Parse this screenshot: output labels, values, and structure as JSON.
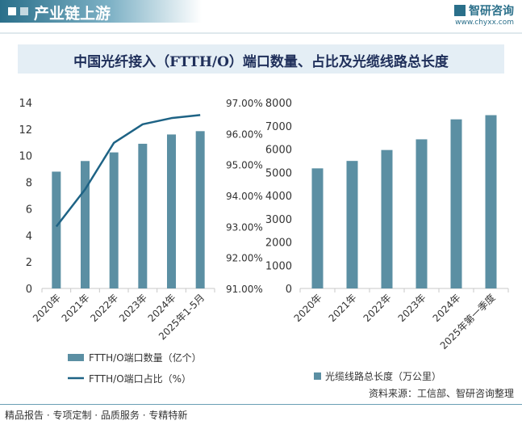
{
  "header": {
    "title": "产业链上游"
  },
  "brand": {
    "name": "智研咨询",
    "url": "www.chyxx.com"
  },
  "title": "中国光纤接入（FTTH/O）端口数量、占比及光缆线路总长度",
  "colors": {
    "bar": "#5b8fa3",
    "line": "#1e6385",
    "title_box": "#e4eef5"
  },
  "chart_data": [
    {
      "type": "bar",
      "categories": [
        "2020年",
        "2021年",
        "2022年",
        "2023年",
        "2024年",
        "2025年1-5月"
      ],
      "series": [
        {
          "name": "FTTH/O端口数量（亿个）",
          "type": "bar",
          "axis": "left",
          "values": [
            8.8,
            9.6,
            10.25,
            10.9,
            11.6,
            11.85
          ]
        },
        {
          "name": "FTTH/O端口占比（%）",
          "type": "line",
          "axis": "right",
          "values": [
            93.0,
            94.2,
            95.7,
            96.3,
            96.5,
            96.6
          ]
        }
      ],
      "y_left": {
        "ylim": [
          0,
          14
        ],
        "ticks": [
          0,
          2,
          4,
          6,
          8,
          10,
          12,
          14
        ]
      },
      "y_right": {
        "ylim": [
          91,
          97
        ],
        "ticks": [
          "91.00%",
          "92.00%",
          "93.00%",
          "94.00%",
          "95.00%",
          "96.00%",
          "97.00%"
        ]
      },
      "legend": "bottom"
    },
    {
      "type": "bar",
      "categories": [
        "2020年",
        "2021年",
        "2022年",
        "2023年",
        "2024年",
        "2025年第一季度"
      ],
      "series": [
        {
          "name": "光缆线路总长度（万公里）",
          "values": [
            5170,
            5490,
            5960,
            6420,
            7280,
            7460
          ]
        }
      ],
      "ylim": [
        0,
        8000
      ],
      "ticks": [
        0,
        1000,
        2000,
        3000,
        4000,
        5000,
        6000,
        7000,
        8000
      ],
      "legend": "bottom"
    }
  ],
  "footer": {
    "left": "精品报告 · 专项定制 · 品质服务 · 专精特新",
    "source": "资料来源：工信部、智研咨询整理"
  }
}
